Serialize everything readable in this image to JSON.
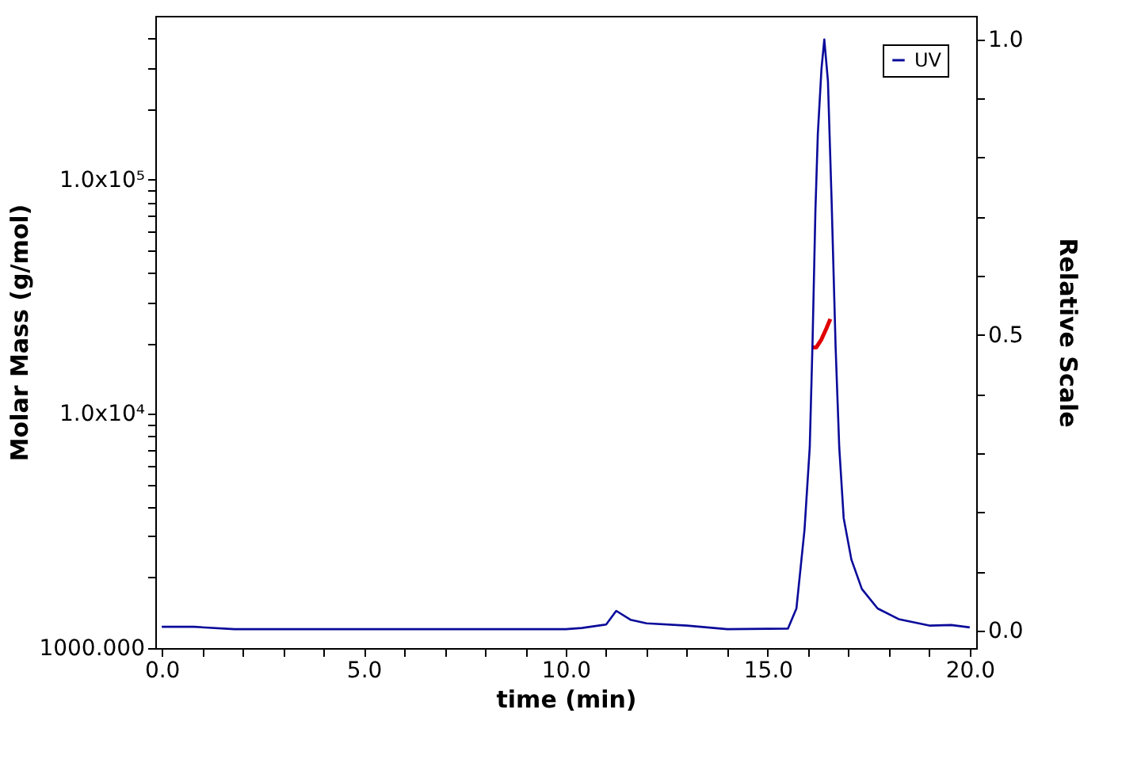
{
  "chart_data": {
    "type": "line",
    "xlabel": "time (min)",
    "ylabel": "Molar Mass (g/mol)",
    "y2label": "Relative Scale",
    "xlim": [
      -0.16,
      20.16
    ],
    "xticks": [
      {
        "value": 0,
        "label": "0.0"
      },
      {
        "value": 1,
        "label": null
      },
      {
        "value": 2,
        "label": null
      },
      {
        "value": 3,
        "label": null
      },
      {
        "value": 4,
        "label": null
      },
      {
        "value": 5,
        "label": "5.0"
      },
      {
        "value": 6,
        "label": null
      },
      {
        "value": 7,
        "label": null
      },
      {
        "value": 8,
        "label": null
      },
      {
        "value": 9,
        "label": null
      },
      {
        "value": 10,
        "label": "10.0"
      },
      {
        "value": 11,
        "label": null
      },
      {
        "value": 12,
        "label": null
      },
      {
        "value": 13,
        "label": null
      },
      {
        "value": 14,
        "label": null
      },
      {
        "value": 15,
        "label": "15.0"
      },
      {
        "value": 16,
        "label": null
      },
      {
        "value": 17,
        "label": null
      },
      {
        "value": 18,
        "label": null
      },
      {
        "value": 19,
        "label": null
      },
      {
        "value": 20,
        "label": "20.0"
      }
    ],
    "log": "y",
    "ylim": [
      1000,
      500000
    ],
    "yticks": [
      {
        "value": 1000,
        "label": "1000.000"
      },
      {
        "value": 2000,
        "label": null
      },
      {
        "value": 3000,
        "label": null
      },
      {
        "value": 4000,
        "label": null
      },
      {
        "value": 5000,
        "label": null
      },
      {
        "value": 6000,
        "label": null
      },
      {
        "value": 7000,
        "label": null
      },
      {
        "value": 8000,
        "label": null
      },
      {
        "value": 9000,
        "label": null
      },
      {
        "value": 10000,
        "label": "1.0x10⁴"
      },
      {
        "value": 20000,
        "label": null
      },
      {
        "value": 30000,
        "label": null
      },
      {
        "value": 40000,
        "label": null
      },
      {
        "value": 50000,
        "label": null
      },
      {
        "value": 60000,
        "label": null
      },
      {
        "value": 70000,
        "label": null
      },
      {
        "value": 80000,
        "label": null
      },
      {
        "value": 90000,
        "label": null
      },
      {
        "value": 100000,
        "label": "1.0x10⁵"
      },
      {
        "value": 200000,
        "label": null
      },
      {
        "value": 300000,
        "label": null
      },
      {
        "value": 400000,
        "label": null
      }
    ],
    "y2lim": [
      -0.03,
      1.04
    ],
    "y2ticks": [
      {
        "value": 0,
        "label": "0.0"
      },
      {
        "value": 0.1,
        "label": null
      },
      {
        "value": 0.2,
        "label": null
      },
      {
        "value": 0.3,
        "label": null
      },
      {
        "value": 0.4,
        "label": null
      },
      {
        "value": 0.5,
        "label": "0.5"
      },
      {
        "value": 0.6,
        "label": null
      },
      {
        "value": 0.7,
        "label": null
      },
      {
        "value": 0.8,
        "label": null
      },
      {
        "value": 0.9,
        "label": null
      },
      {
        "value": 1.0,
        "label": "1.0"
      }
    ],
    "grid": false,
    "legend": "top right",
    "marker": "none",
    "line_style": "solid",
    "series": [
      {
        "name": "UV",
        "color": "#0a0a9a",
        "axis": "y2",
        "x": [
          0,
          0.8,
          1.8,
          5,
          10,
          10.4,
          11.0,
          11.25,
          11.6,
          12.0,
          13.0,
          14.0,
          15.5,
          15.71,
          15.91,
          16.04,
          16.11,
          16.18,
          16.24,
          16.33,
          16.4,
          16.49,
          16.58,
          16.68,
          16.77,
          16.88,
          17.07,
          17.33,
          17.72,
          18.24,
          19.02,
          19.54,
          20.0
        ],
        "values": [
          0.006,
          0.006,
          0.002,
          0.002,
          0.002,
          0.004,
          0.01,
          0.033,
          0.018,
          0.012,
          0.008,
          0.002,
          0.003,
          0.037,
          0.17,
          0.31,
          0.49,
          0.71,
          0.84,
          0.95,
          1.0,
          0.93,
          0.73,
          0.48,
          0.31,
          0.19,
          0.12,
          0.07,
          0.037,
          0.019,
          0.008,
          0.009,
          0.005
        ]
      },
      {
        "color": "#e00000",
        "axis": "y",
        "x": [
          16.08,
          16.2,
          16.33,
          16.45,
          16.55
        ],
        "values": [
          19200,
          19200,
          20800,
          23100,
          25400
        ]
      }
    ]
  }
}
